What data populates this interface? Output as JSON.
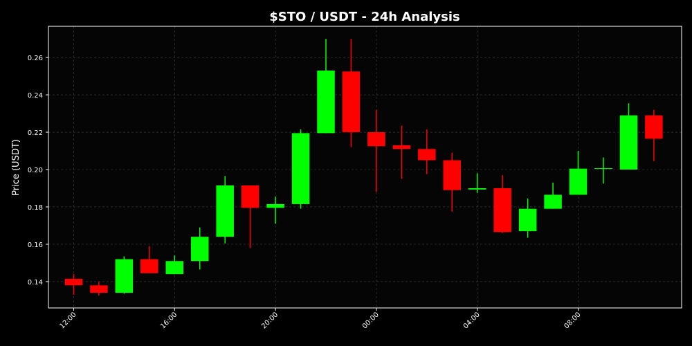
{
  "chart_data": {
    "type": "candlestick",
    "title": "$STO / USDT - 24h Analysis",
    "ylabel": "Price (USDT)",
    "x": [
      0,
      1,
      2,
      3,
      4,
      5,
      6,
      7,
      8,
      9,
      10,
      11,
      12,
      13,
      14,
      15,
      16,
      17,
      18,
      19,
      20,
      21,
      22,
      23
    ],
    "series": [
      {
        "up_color": "#00ff00",
        "down_color": "#ff0000",
        "open": [
          0.1415,
          0.138,
          0.134,
          0.152,
          0.144,
          0.151,
          0.164,
          0.1915,
          0.1795,
          0.1815,
          0.2195,
          0.2525,
          0.22,
          0.213,
          0.211,
          0.205,
          0.1893,
          0.19,
          0.167,
          0.179,
          0.1865,
          0.2003,
          0.2,
          0.229
        ],
        "high": [
          0.144,
          0.14,
          0.1535,
          0.159,
          0.154,
          0.169,
          0.1965,
          0.1915,
          0.1855,
          0.2215,
          0.27,
          0.27,
          0.232,
          0.2235,
          0.2215,
          0.209,
          0.198,
          0.197,
          0.1845,
          0.193,
          0.21,
          0.2065,
          0.2355,
          0.232
        ],
        "low": [
          0.133,
          0.1325,
          0.1335,
          0.1445,
          0.144,
          0.1465,
          0.1605,
          0.158,
          0.171,
          0.179,
          0.2195,
          0.212,
          0.188,
          0.195,
          0.1975,
          0.1775,
          0.1875,
          0.166,
          0.1635,
          0.179,
          0.1865,
          0.1925,
          0.2,
          0.2045
        ],
        "close": [
          0.138,
          0.134,
          0.152,
          0.1445,
          0.151,
          0.164,
          0.1915,
          0.1795,
          0.1815,
          0.2195,
          0.253,
          0.22,
          0.2125,
          0.211,
          0.205,
          0.189,
          0.19,
          0.1665,
          0.179,
          0.1865,
          0.2005,
          0.2007,
          0.229,
          0.2165
        ]
      }
    ],
    "xlim": [
      -1,
      24.1
    ],
    "xticks": [
      {
        "value": 0,
        "label": "12:00"
      },
      {
        "value": 4,
        "label": "16:00"
      },
      {
        "value": 8,
        "label": "20:00"
      },
      {
        "value": 12,
        "label": "00:00"
      },
      {
        "value": 16,
        "label": "04:00"
      },
      {
        "value": 20,
        "label": "08:00"
      }
    ],
    "ylim": [
      0.1259,
      0.2767
    ],
    "yticks": [
      0.14,
      0.16,
      0.18,
      {
        "value": 0.2,
        "label": "0.20"
      },
      0.22,
      0.24,
      0.26
    ],
    "grid": true
  }
}
